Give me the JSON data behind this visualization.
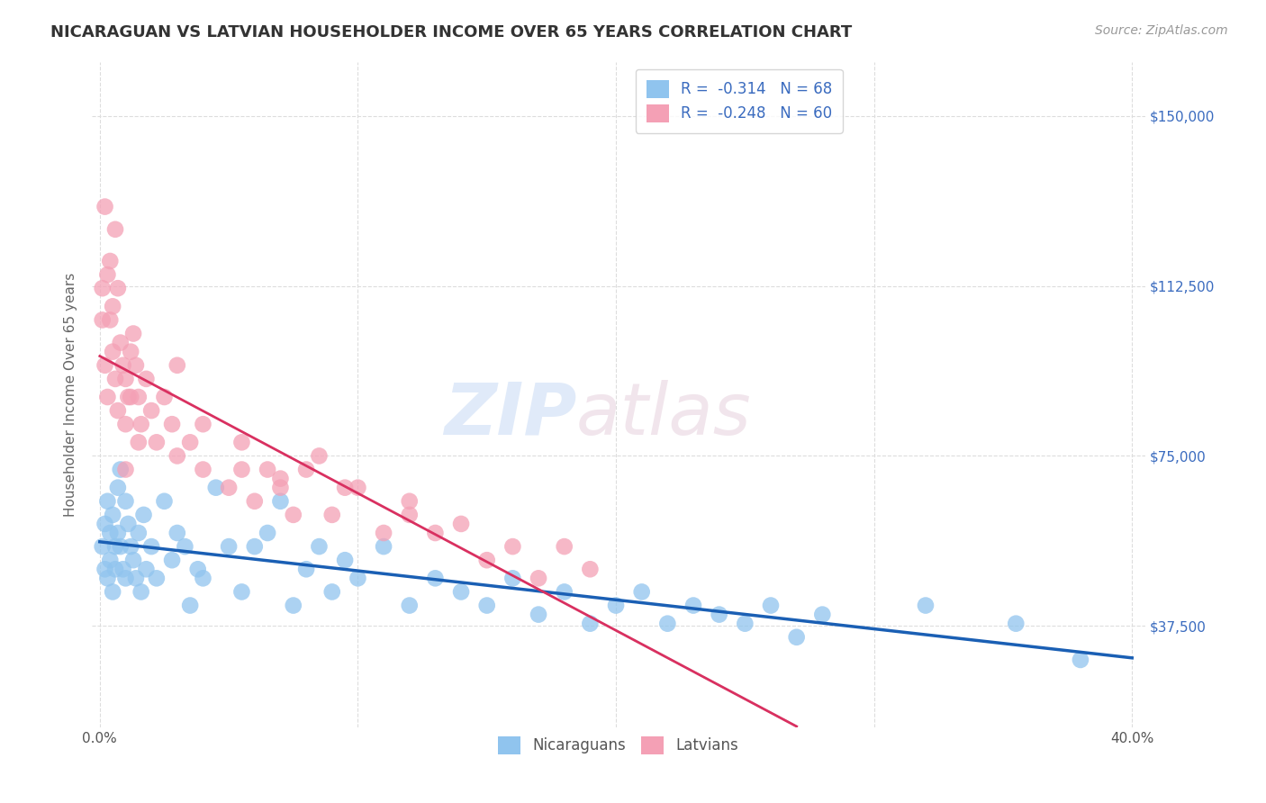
{
  "title": "NICARAGUAN VS LATVIAN HOUSEHOLDER INCOME OVER 65 YEARS CORRELATION CHART",
  "source": "Source: ZipAtlas.com",
  "ylabel": "Householder Income Over 65 years",
  "xlim": [
    -0.003,
    0.405
  ],
  "ylim": [
    15000,
    162000
  ],
  "xticks": [
    0.0,
    0.1,
    0.2,
    0.3,
    0.4
  ],
  "xticklabels": [
    "0.0%",
    "",
    "",
    "",
    "40.0%"
  ],
  "yticks": [
    37500,
    75000,
    112500,
    150000
  ],
  "yticklabels": [
    "$37,500",
    "$75,000",
    "$112,500",
    "$150,000"
  ],
  "nicaraguan_color": "#90C4EE",
  "latvian_color": "#F4A0B5",
  "nicaraguan_line_color": "#1a5fb4",
  "latvian_line_color": "#d93060",
  "dashed_line_color": "#cccccc",
  "r_nicaraguan": -0.314,
  "n_nicaraguan": 68,
  "r_latvian": -0.248,
  "n_latvian": 60,
  "legend_text_color": "#3a6bbf",
  "title_color": "#333333",
  "background_color": "#ffffff",
  "grid_color": "#dddddd",
  "nicaraguan_x": [
    0.001,
    0.002,
    0.002,
    0.003,
    0.003,
    0.004,
    0.004,
    0.005,
    0.005,
    0.006,
    0.006,
    0.007,
    0.007,
    0.008,
    0.008,
    0.009,
    0.01,
    0.01,
    0.011,
    0.012,
    0.013,
    0.014,
    0.015,
    0.016,
    0.017,
    0.018,
    0.02,
    0.022,
    0.025,
    0.028,
    0.03,
    0.033,
    0.035,
    0.038,
    0.04,
    0.045,
    0.05,
    0.055,
    0.06,
    0.065,
    0.07,
    0.075,
    0.08,
    0.085,
    0.09,
    0.095,
    0.1,
    0.11,
    0.12,
    0.13,
    0.14,
    0.15,
    0.16,
    0.17,
    0.18,
    0.19,
    0.2,
    0.21,
    0.22,
    0.23,
    0.24,
    0.25,
    0.26,
    0.27,
    0.28,
    0.32,
    0.355,
    0.38
  ],
  "nicaraguan_y": [
    55000,
    60000,
    50000,
    65000,
    48000,
    58000,
    52000,
    62000,
    45000,
    55000,
    50000,
    68000,
    58000,
    72000,
    55000,
    50000,
    65000,
    48000,
    60000,
    55000,
    52000,
    48000,
    58000,
    45000,
    62000,
    50000,
    55000,
    48000,
    65000,
    52000,
    58000,
    55000,
    42000,
    50000,
    48000,
    68000,
    55000,
    45000,
    55000,
    58000,
    65000,
    42000,
    50000,
    55000,
    45000,
    52000,
    48000,
    55000,
    42000,
    48000,
    45000,
    42000,
    48000,
    40000,
    45000,
    38000,
    42000,
    45000,
    38000,
    42000,
    40000,
    38000,
    42000,
    35000,
    40000,
    42000,
    38000,
    30000
  ],
  "latvian_x": [
    0.001,
    0.001,
    0.002,
    0.002,
    0.003,
    0.003,
    0.004,
    0.004,
    0.005,
    0.005,
    0.006,
    0.006,
    0.007,
    0.007,
    0.008,
    0.009,
    0.01,
    0.01,
    0.011,
    0.012,
    0.013,
    0.014,
    0.015,
    0.016,
    0.018,
    0.02,
    0.022,
    0.025,
    0.028,
    0.03,
    0.035,
    0.04,
    0.05,
    0.055,
    0.06,
    0.065,
    0.07,
    0.075,
    0.08,
    0.09,
    0.1,
    0.11,
    0.12,
    0.13,
    0.14,
    0.15,
    0.16,
    0.17,
    0.18,
    0.19,
    0.03,
    0.04,
    0.015,
    0.012,
    0.01,
    0.12,
    0.085,
    0.095,
    0.055,
    0.07
  ],
  "latvian_y": [
    112000,
    105000,
    130000,
    95000,
    115000,
    88000,
    105000,
    118000,
    98000,
    108000,
    125000,
    92000,
    112000,
    85000,
    100000,
    95000,
    82000,
    92000,
    88000,
    98000,
    102000,
    95000,
    88000,
    82000,
    92000,
    85000,
    78000,
    88000,
    82000,
    75000,
    78000,
    72000,
    68000,
    72000,
    65000,
    72000,
    68000,
    62000,
    72000,
    62000,
    68000,
    58000,
    65000,
    58000,
    60000,
    52000,
    55000,
    48000,
    55000,
    50000,
    95000,
    82000,
    78000,
    88000,
    72000,
    62000,
    75000,
    68000,
    78000,
    70000
  ]
}
